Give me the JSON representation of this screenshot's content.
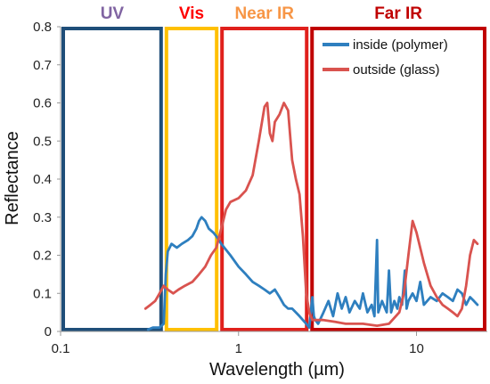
{
  "chart_data": {
    "type": "line",
    "xlabel": "Wavelength  (µm)",
    "ylabel": "Reflectance",
    "x_scale": "log",
    "xlim": [
      0.1,
      25
    ],
    "ylim": [
      0,
      0.8
    ],
    "x_ticks": [
      0.1,
      1,
      10
    ],
    "x_tick_labels": [
      "0.1",
      "1",
      "10"
    ],
    "y_ticks": [
      0,
      0.1,
      0.2,
      0.3,
      0.4,
      0.5,
      0.6,
      0.7,
      0.8
    ],
    "y_tick_labels": [
      "0",
      "0.1",
      "0.2",
      "0.3",
      "0.4",
      "0.5",
      "0.6",
      "0.7",
      "0.8"
    ],
    "grid": false,
    "legend_position": "top-right",
    "regions": [
      {
        "label": "UV",
        "x_start": 0.1,
        "x_end": 0.38,
        "color": "#1f4e79",
        "label_color": "#8064a2"
      },
      {
        "label": "Vis",
        "x_start": 0.38,
        "x_end": 0.78,
        "color": "#ffc000",
        "label_color": "#ff0000"
      },
      {
        "label": "Near IR",
        "x_start": 0.78,
        "x_end": 2.5,
        "color": "#e0201c",
        "label_color": "#f79646"
      },
      {
        "label": "Far IR",
        "x_start": 2.5,
        "x_end": 25,
        "color": "#c00000",
        "label_color": "#c00000"
      }
    ],
    "series": [
      {
        "name": "inside (polymer)",
        "color": "#2e7fbf",
        "points": [
          [
            0.31,
            0.005
          ],
          [
            0.33,
            0.01
          ],
          [
            0.36,
            0.01
          ],
          [
            0.38,
            0.02
          ],
          [
            0.39,
            0.15
          ],
          [
            0.4,
            0.21
          ],
          [
            0.42,
            0.23
          ],
          [
            0.45,
            0.22
          ],
          [
            0.48,
            0.23
          ],
          [
            0.52,
            0.24
          ],
          [
            0.55,
            0.25
          ],
          [
            0.58,
            0.27
          ],
          [
            0.6,
            0.29
          ],
          [
            0.62,
            0.3
          ],
          [
            0.65,
            0.29
          ],
          [
            0.68,
            0.27
          ],
          [
            0.72,
            0.26
          ],
          [
            0.75,
            0.25
          ],
          [
            0.8,
            0.23
          ],
          [
            0.9,
            0.2
          ],
          [
            1.0,
            0.17
          ],
          [
            1.1,
            0.15
          ],
          [
            1.2,
            0.13
          ],
          [
            1.3,
            0.12
          ],
          [
            1.4,
            0.11
          ],
          [
            1.5,
            0.1
          ],
          [
            1.6,
            0.11
          ],
          [
            1.7,
            0.09
          ],
          [
            1.8,
            0.07
          ],
          [
            1.9,
            0.06
          ],
          [
            2.0,
            0.06
          ],
          [
            2.1,
            0.05
          ],
          [
            2.2,
            0.04
          ],
          [
            2.3,
            0.03
          ],
          [
            2.4,
            0.02
          ],
          [
            2.5,
            0.01
          ],
          [
            2.6,
            0.09
          ],
          [
            2.65,
            0.04
          ],
          [
            2.7,
            0.03
          ],
          [
            2.8,
            0.02
          ],
          [
            3.0,
            0.05
          ],
          [
            3.2,
            0.08
          ],
          [
            3.4,
            0.04
          ],
          [
            3.6,
            0.1
          ],
          [
            3.8,
            0.06
          ],
          [
            4.0,
            0.09
          ],
          [
            4.2,
            0.05
          ],
          [
            4.5,
            0.08
          ],
          [
            4.8,
            0.06
          ],
          [
            5.0,
            0.1
          ],
          [
            5.3,
            0.05
          ],
          [
            5.6,
            0.07
          ],
          [
            5.8,
            0.04
          ],
          [
            6.0,
            0.24
          ],
          [
            6.1,
            0.05
          ],
          [
            6.4,
            0.08
          ],
          [
            6.8,
            0.05
          ],
          [
            7.0,
            0.16
          ],
          [
            7.2,
            0.05
          ],
          [
            7.5,
            0.08
          ],
          [
            7.8,
            0.06
          ],
          [
            8.0,
            0.09
          ],
          [
            8.3,
            0.07
          ],
          [
            8.6,
            0.16
          ],
          [
            8.8,
            0.06
          ],
          [
            9.0,
            0.08
          ],
          [
            9.5,
            0.1
          ],
          [
            10,
            0.08
          ],
          [
            10.5,
            0.13
          ],
          [
            11,
            0.07
          ],
          [
            12,
            0.09
          ],
          [
            13,
            0.08
          ],
          [
            14,
            0.1
          ],
          [
            15,
            0.09
          ],
          [
            16,
            0.08
          ],
          [
            17,
            0.11
          ],
          [
            18,
            0.1
          ],
          [
            19,
            0.07
          ],
          [
            20,
            0.09
          ],
          [
            21,
            0.08
          ],
          [
            22,
            0.07
          ]
        ]
      },
      {
        "name": "outside (glass)",
        "color": "#d9534f",
        "points": [
          [
            0.3,
            0.06
          ],
          [
            0.32,
            0.07
          ],
          [
            0.34,
            0.08
          ],
          [
            0.36,
            0.1
          ],
          [
            0.38,
            0.12
          ],
          [
            0.4,
            0.11
          ],
          [
            0.43,
            0.1
          ],
          [
            0.46,
            0.11
          ],
          [
            0.5,
            0.12
          ],
          [
            0.55,
            0.13
          ],
          [
            0.6,
            0.15
          ],
          [
            0.65,
            0.17
          ],
          [
            0.7,
            0.2
          ],
          [
            0.75,
            0.22
          ],
          [
            0.8,
            0.27
          ],
          [
            0.85,
            0.32
          ],
          [
            0.9,
            0.34
          ],
          [
            1.0,
            0.35
          ],
          [
            1.1,
            0.37
          ],
          [
            1.2,
            0.41
          ],
          [
            1.3,
            0.5
          ],
          [
            1.4,
            0.59
          ],
          [
            1.45,
            0.6
          ],
          [
            1.5,
            0.52
          ],
          [
            1.55,
            0.5
          ],
          [
            1.6,
            0.55
          ],
          [
            1.7,
            0.57
          ],
          [
            1.8,
            0.6
          ],
          [
            1.9,
            0.58
          ],
          [
            2.0,
            0.45
          ],
          [
            2.1,
            0.4
          ],
          [
            2.2,
            0.36
          ],
          [
            2.3,
            0.25
          ],
          [
            2.4,
            0.1
          ],
          [
            2.5,
            0.05
          ],
          [
            2.6,
            0.03
          ],
          [
            2.8,
            0.03
          ],
          [
            3.0,
            0.03
          ],
          [
            3.5,
            0.025
          ],
          [
            4.0,
            0.02
          ],
          [
            5.0,
            0.02
          ],
          [
            6.0,
            0.015
          ],
          [
            7.0,
            0.02
          ],
          [
            8.0,
            0.05
          ],
          [
            8.5,
            0.1
          ],
          [
            9.0,
            0.2
          ],
          [
            9.5,
            0.29
          ],
          [
            10,
            0.26
          ],
          [
            11,
            0.18
          ],
          [
            12,
            0.12
          ],
          [
            13,
            0.09
          ],
          [
            14,
            0.07
          ],
          [
            15,
            0.06
          ],
          [
            16,
            0.05
          ],
          [
            17,
            0.04
          ],
          [
            18,
            0.06
          ],
          [
            19,
            0.12
          ],
          [
            20,
            0.2
          ],
          [
            21,
            0.24
          ],
          [
            22,
            0.23
          ]
        ]
      }
    ]
  }
}
